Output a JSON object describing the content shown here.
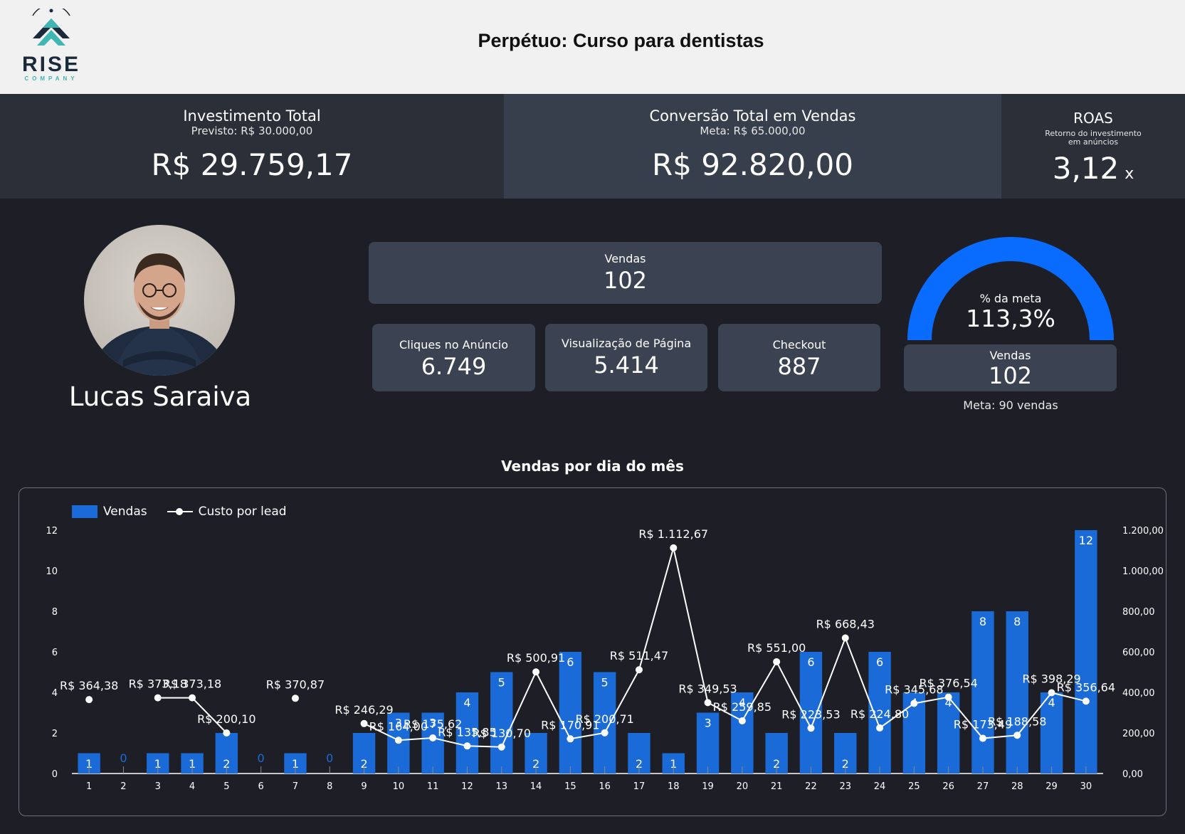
{
  "header": {
    "title": "Perpétuo: Curso para dentistas",
    "logo_name": "RISE",
    "logo_sub": "COMPANY"
  },
  "kpis": {
    "investimento": {
      "label": "Investimento Total",
      "sub": "Previsto: R$ 30.000,00",
      "value": "R$ 29.759,17"
    },
    "conversao": {
      "label": "Conversão Total em Vendas",
      "sub": "Meta: R$ 65.000,00",
      "value": "R$ 92.820,00"
    },
    "roas": {
      "label": "ROAS",
      "sub": "Retorno do investimento em anúncios",
      "value": "3,12",
      "unit": "x"
    }
  },
  "profile": {
    "name": "Lucas Saraiva"
  },
  "cards": {
    "vendas": {
      "label": "Vendas",
      "value": "102"
    },
    "cliques": {
      "label": "Cliques no Anúncio",
      "value": "6.749"
    },
    "visualizacao": {
      "label": "Visualização de Página",
      "value": "5.414"
    },
    "checkout": {
      "label": "Checkout",
      "value": "887"
    },
    "vendas_meta": {
      "label": "Vendas",
      "value": "102"
    }
  },
  "gauge": {
    "label": "% da meta",
    "value_text": "113,3%",
    "percent": 113.3,
    "meta_text": "Meta: 90 vendas",
    "color": "#0a6cff"
  },
  "colors": {
    "bar": "#1a6bd8",
    "line": "#ffffff",
    "zero_label": "#1a6bd8"
  },
  "chart_data": {
    "type": "bar",
    "title": "Vendas por dia do mês",
    "categories": [
      "1",
      "2",
      "3",
      "4",
      "5",
      "6",
      "7",
      "8",
      "9",
      "10",
      "11",
      "12",
      "13",
      "14",
      "15",
      "16",
      "17",
      "18",
      "19",
      "20",
      "21",
      "22",
      "23",
      "24",
      "25",
      "26",
      "27",
      "28",
      "29",
      "30"
    ],
    "series": [
      {
        "name": "Vendas",
        "type": "bar",
        "axis": "left",
        "values": [
          1,
          0,
          1,
          1,
          2,
          0,
          1,
          0,
          2,
          3,
          3,
          4,
          5,
          2,
          6,
          5,
          2,
          1,
          3,
          4,
          2,
          6,
          2,
          6,
          4,
          4,
          8,
          8,
          4,
          12
        ]
      },
      {
        "name": "Custo por lead",
        "type": "line",
        "axis": "right",
        "values": [
          364.38,
          null,
          373.18,
          373.18,
          200.1,
          null,
          370.87,
          null,
          246.29,
          164.0,
          175.62,
          135.85,
          130.7,
          500.91,
          170.91,
          200.71,
          511.47,
          1112.67,
          349.53,
          259.85,
          551.0,
          223.53,
          668.43,
          224.8,
          345.68,
          376.54,
          173.49,
          188.58,
          398.29,
          356.64
        ],
        "labels": [
          "R$ 364,38",
          "",
          "R$ 373,18",
          "R$ 373,18",
          "R$ 200,10",
          "",
          "R$ 370,87",
          "",
          "R$ 246,29",
          "R$ 164,00",
          "R$ 175,62",
          "R$ 135,85",
          "R$ 130,70",
          "R$ 500,91",
          "R$ 170,91",
          "R$ 200,71",
          "R$ 511,47",
          "R$ 1.112,67",
          "R$ 349,53",
          "R$ 259,85",
          "R$ 551,00",
          "R$ 223,53",
          "R$ 668,43",
          "R$ 224,80",
          "R$ 345,68",
          "R$ 376,54",
          "R$ 173,49",
          "R$ 188,58",
          "R$ 398,29",
          "R$ 356,64"
        ]
      }
    ],
    "y_left": {
      "min": 0,
      "max": 12,
      "ticks": [
        "0",
        "2",
        "4",
        "6",
        "8",
        "10",
        "12"
      ]
    },
    "y_right": {
      "min": 0,
      "max": 1200,
      "ticks": [
        "0,00",
        "200,00",
        "400,00",
        "600,00",
        "800,00",
        "1.000,00",
        "1.200,00"
      ]
    },
    "legend": "top-left",
    "grid": false
  }
}
